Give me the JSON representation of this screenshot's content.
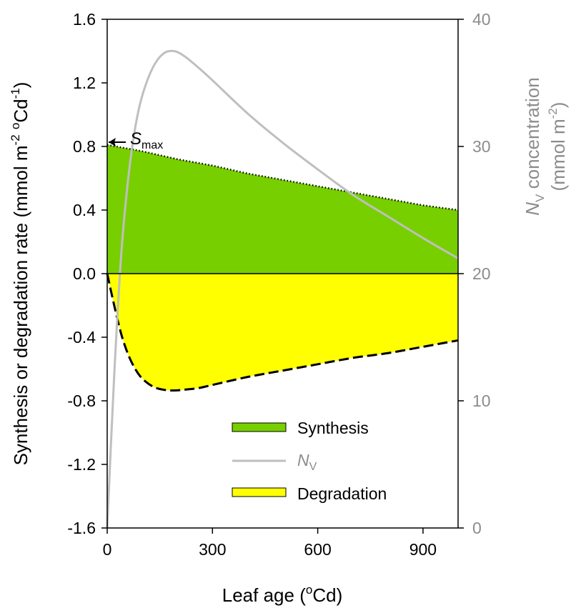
{
  "chart_data": {
    "type": "area",
    "x_axis": {
      "label_main": "Leaf age (",
      "label_sup": "o",
      "label_tail": "Cd)",
      "range": [
        0,
        1000
      ],
      "ticks": [
        0,
        300,
        600,
        900
      ],
      "tick_labels": [
        "0",
        "300",
        "600",
        "900"
      ]
    },
    "y_left_axis": {
      "label_main": "Synthesis or degradation rate (mmol m",
      "label_sup1": "-2",
      "label_mid": " ",
      "label_sup2": "o",
      "label_mid2": "Cd",
      "label_sup3": "-1",
      "label_tail": ")",
      "range": [
        -1.6,
        1.6
      ],
      "ticks": [
        -1.6,
        -1.2,
        -0.8,
        -0.4,
        0.0,
        0.4,
        0.8,
        1.2,
        1.6
      ],
      "tick_labels": [
        "-1.6",
        "-1.2",
        "-0.8",
        "-0.4",
        "0.0",
        "0.4",
        "0.8",
        "1.2",
        "1.6"
      ]
    },
    "y_right_axis": {
      "label_line1_N": "N",
      "label_line1_sub": "V",
      "label_line1_rest": " concentration",
      "label_line2_main": "(mmol m",
      "label_line2_sup": "-2",
      "label_line2_tail": ")",
      "range": [
        0,
        40
      ],
      "ticks": [
        0,
        10,
        20,
        30,
        40
      ],
      "tick_labels": [
        "0",
        "10",
        "20",
        "30",
        "40"
      ]
    },
    "series": [
      {
        "name": "Synthesis",
        "kind": "area",
        "axis": "left",
        "x": [
          0,
          100,
          200,
          300,
          400,
          500,
          600,
          700,
          800,
          900,
          1000
        ],
        "y": [
          0.81,
          0.77,
          0.72,
          0.68,
          0.63,
          0.59,
          0.55,
          0.51,
          0.47,
          0.43,
          0.4
        ]
      },
      {
        "name": "N_V",
        "kind": "line",
        "axis": "right",
        "x": [
          0,
          20,
          40,
          60,
          80,
          100,
          130,
          160,
          190,
          220,
          260,
          300,
          400,
          500,
          600,
          700,
          800,
          900,
          1000
        ],
        "y": [
          0,
          12,
          21.5,
          27.5,
          31.5,
          34,
          36.2,
          37.3,
          37.5,
          37.1,
          36.2,
          35.2,
          32.6,
          30.3,
          28.2,
          26.2,
          24.5,
          22.8,
          21.2
        ]
      },
      {
        "name": "Degradation",
        "kind": "area",
        "axis": "left",
        "x": [
          0,
          20,
          40,
          60,
          80,
          100,
          130,
          160,
          190,
          220,
          260,
          300,
          400,
          500,
          600,
          700,
          800,
          900,
          1000
        ],
        "y": [
          0,
          -0.2,
          -0.38,
          -0.51,
          -0.6,
          -0.66,
          -0.71,
          -0.73,
          -0.735,
          -0.73,
          -0.72,
          -0.7,
          -0.65,
          -0.61,
          -0.57,
          -0.53,
          -0.5,
          -0.46,
          -0.42
        ]
      }
    ],
    "legend": {
      "placement": "bottom-right",
      "items": [
        {
          "label": "Synthesis",
          "type": "patch",
          "color": "#77cf00"
        },
        {
          "label_main": "N",
          "label_sub": "V",
          "type": "line",
          "color": "#bfbfbf"
        },
        {
          "label": "Degradation",
          "type": "patch",
          "color": "#ffff00"
        }
      ]
    },
    "annotation": {
      "label_main": "S",
      "label_sub": "max",
      "x": 0,
      "y": 0.81
    },
    "grid": false,
    "colors": {
      "synthesis_fill": "#77cf00",
      "degradation_fill": "#ffff00",
      "nv_line": "#bfbfbf",
      "right_axis": "#8c8c8c",
      "outline": "#000000"
    }
  }
}
